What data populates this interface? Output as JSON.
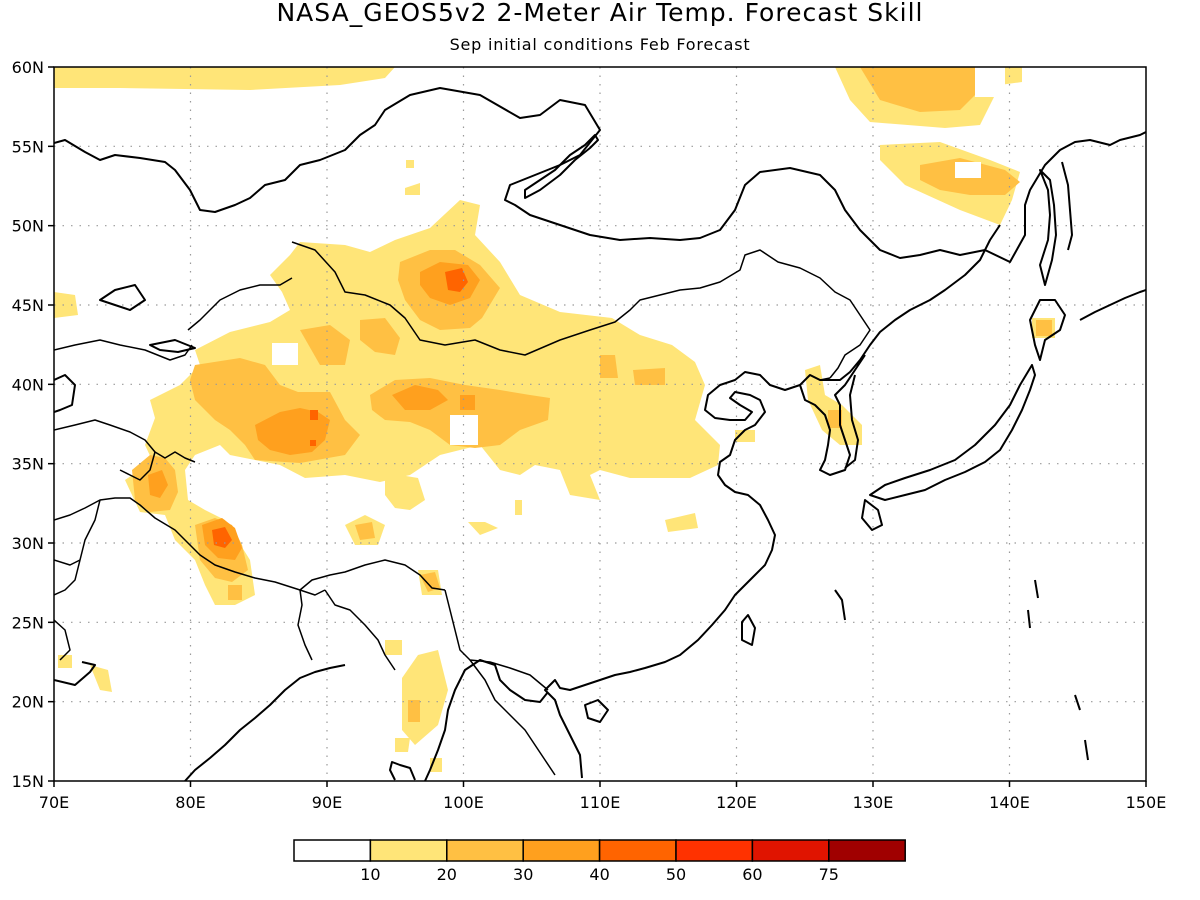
{
  "title": "NASA_GEOS5v2 2-Meter Air Temp. Forecast Skill",
  "subtitle": "Sep initial conditions  Feb Forecast",
  "map": {
    "region": "East Asia",
    "lon_range": [
      70,
      150
    ],
    "lat_range": [
      15,
      60
    ],
    "lon_ticks": [
      "70E",
      "80E",
      "90E",
      "100E",
      "110E",
      "120E",
      "130E",
      "140E",
      "150E"
    ],
    "lat_ticks": [
      "15N",
      "20N",
      "25N",
      "30N",
      "35N",
      "40N",
      "45N",
      "50N",
      "55N",
      "60N"
    ],
    "lon_values": [
      70,
      80,
      90,
      100,
      110,
      120,
      130,
      140,
      150
    ],
    "lat_values": [
      15,
      20,
      25,
      30,
      35,
      40,
      45,
      50,
      55,
      60
    ],
    "grid": true
  },
  "legend": {
    "labels": [
      "10",
      "20",
      "30",
      "40",
      "50",
      "60",
      "75"
    ],
    "colors": [
      "#ffffff",
      "#ffe578",
      "#ffc043",
      "#ffa01e",
      "#ff6400",
      "#ff3200",
      "#e01400",
      "#a00000"
    ]
  },
  "chart_data": {
    "type": "heatmap",
    "title": "NASA_GEOS5v2 2-Meter Air Temp. Forecast Skill",
    "subtitle": "Sep initial conditions  Feb Forecast",
    "xlim": [
      70,
      150
    ],
    "ylim": [
      15,
      60
    ],
    "levels": [
      10,
      20,
      30,
      40,
      50,
      60,
      75
    ],
    "regions": [
      {
        "lon": [
          70,
          100
        ],
        "lat": [
          58,
          60
        ],
        "min_level": 10
      },
      {
        "lon": [
          128,
          141
        ],
        "lat": [
          53,
          60
        ],
        "min_level": 10
      },
      {
        "lon": [
          130,
          139
        ],
        "lat": [
          57,
          60
        ],
        "min_level": 20
      },
      {
        "lon": [
          131,
          143
        ],
        "lat": [
          49,
          55
        ],
        "min_level": 10
      },
      {
        "lon": [
          134,
          141
        ],
        "lat": [
          50,
          53
        ],
        "min_level": 20
      },
      {
        "lon": [
          76,
          120
        ],
        "lat": [
          34,
          51
        ],
        "min_level": 10
      },
      {
        "lon": [
          81,
          91
        ],
        "lat": [
          35,
          40
        ],
        "min_level": 20
      },
      {
        "lon": [
          95,
          108
        ],
        "lat": [
          36,
          42
        ],
        "min_level": 20
      },
      {
        "lon": [
          96,
          104
        ],
        "lat": [
          43,
          49
        ],
        "min_level": 20
      },
      {
        "lon": [
          99,
          101
        ],
        "lat": [
          45,
          47
        ],
        "min_level": 30
      },
      {
        "lon": [
          77,
          80
        ],
        "lat": [
          31,
          36
        ],
        "min_level": 20
      },
      {
        "lon": [
          80,
          84
        ],
        "lat": [
          27,
          32
        ],
        "min_level": 20
      },
      {
        "lon": [
          82,
          83
        ],
        "lat": [
          29,
          31
        ],
        "min_level": 40
      },
      {
        "lon": [
          95,
          98
        ],
        "lat": [
          16,
          23
        ],
        "min_level": 10
      },
      {
        "lon": [
          142,
          143
        ],
        "lat": [
          43,
          44
        ],
        "min_level": 20
      }
    ]
  }
}
